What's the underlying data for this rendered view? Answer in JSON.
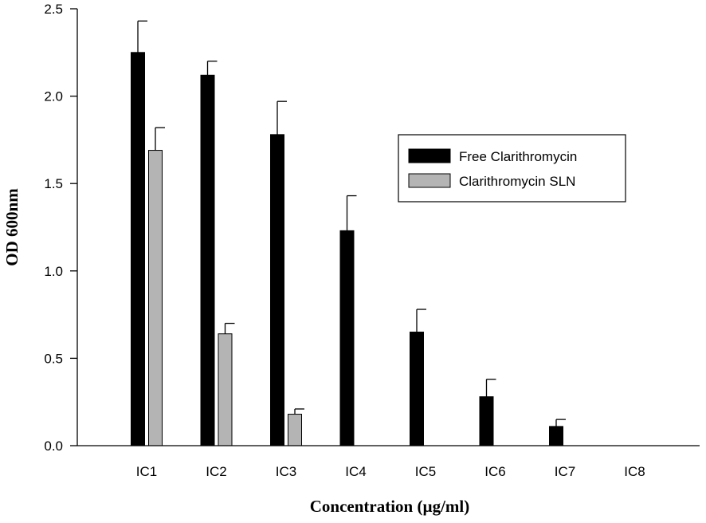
{
  "chart_data": {
    "type": "bar",
    "title": "",
    "xlabel": "Concentration (µg/ml)",
    "ylabel": "OD 600nm",
    "ylim": [
      0,
      2.5
    ],
    "yticks": [
      0.0,
      0.5,
      1.0,
      1.5,
      2.0,
      2.5
    ],
    "ytick_labels": [
      "0.0",
      "0.5",
      "1.0",
      "1.5",
      "2.0",
      "2.5"
    ],
    "categories": [
      "IC1",
      "IC2",
      "IC3",
      "IC4",
      "IC5",
      "IC6",
      "IC7",
      "IC8"
    ],
    "series": [
      {
        "name": "Free Clarithromycin",
        "color": "#000000",
        "values": [
          2.25,
          2.12,
          1.78,
          1.23,
          0.65,
          0.28,
          0.11,
          0.0
        ],
        "errors": [
          0.18,
          0.08,
          0.19,
          0.2,
          0.13,
          0.1,
          0.04,
          0.0
        ]
      },
      {
        "name": "Clarithromycin SLN",
        "color": "#b4b4b4",
        "values": [
          1.69,
          0.64,
          0.18,
          0.0,
          0.0,
          0.0,
          0.0,
          0.0
        ],
        "errors": [
          0.13,
          0.06,
          0.03,
          0.0,
          0.0,
          0.0,
          0.0,
          0.0
        ]
      }
    ],
    "legend_position": "upper-right",
    "grid": false
  }
}
